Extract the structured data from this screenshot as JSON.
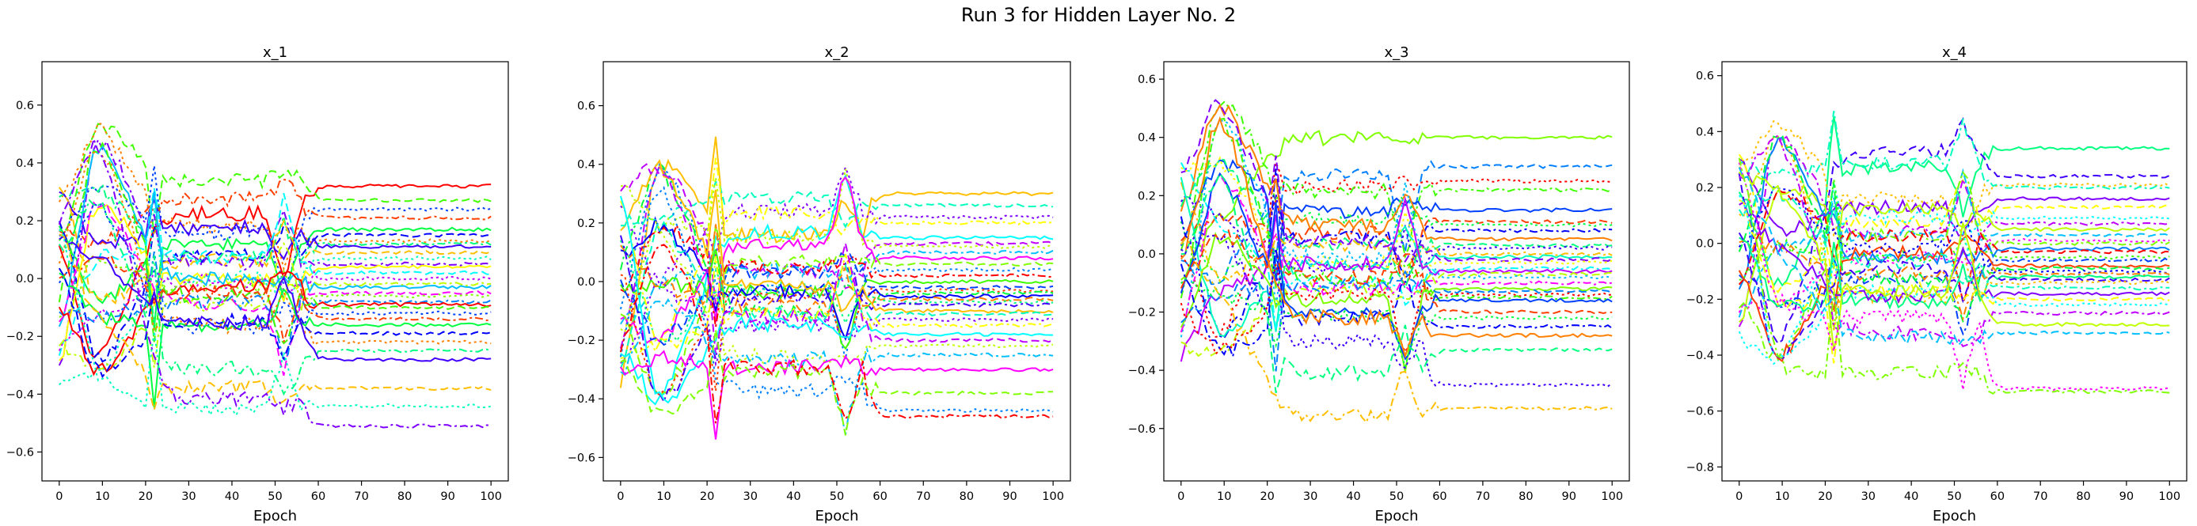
{
  "figure": {
    "suptitle": "Run 3 for Hidden Layer No. 2"
  },
  "chart_data": [
    {
      "type": "line",
      "title": "x_1",
      "xlabel": "Epoch",
      "ylabel": "",
      "xlim": [
        -4,
        104
      ],
      "ylim": [
        -0.7,
        0.75
      ],
      "xticks": [
        0,
        10,
        20,
        30,
        40,
        50,
        60,
        70,
        80,
        90,
        100
      ],
      "yticks": [
        -0.6,
        -0.4,
        -0.2,
        0.0,
        0.2,
        0.4,
        0.6
      ],
      "ytick_labels": [
        "−0.6",
        "−0.4",
        "−0.2",
        "0.0",
        "0.2",
        "0.4",
        "0.6"
      ],
      "grid": false,
      "series_count": 32,
      "series_finals": [
        0.32,
        0.27,
        0.24,
        0.21,
        0.17,
        0.15,
        0.13,
        0.12,
        0.11,
        0.09,
        0.07,
        0.05,
        0.04,
        0.02,
        0.0,
        -0.02,
        -0.03,
        -0.05,
        -0.06,
        -0.08,
        -0.09,
        -0.1,
        -0.12,
        -0.14,
        -0.16,
        -0.19,
        -0.22,
        -0.25,
        -0.28,
        -0.38,
        -0.44,
        -0.51
      ]
    },
    {
      "type": "line",
      "title": "x_2",
      "xlabel": "Epoch",
      "ylabel": "",
      "xlim": [
        -4,
        104
      ],
      "ylim": [
        -0.68,
        0.75
      ],
      "xticks": [
        0,
        10,
        20,
        30,
        40,
        50,
        60,
        70,
        80,
        90,
        100
      ],
      "yticks": [
        -0.6,
        -0.4,
        -0.2,
        0.0,
        0.2,
        0.4,
        0.6
      ],
      "ytick_labels": [
        "−0.6",
        "−0.4",
        "−0.2",
        "0.0",
        "0.2",
        "0.4",
        "0.6"
      ],
      "grid": false,
      "series_count": 32,
      "series_finals": [
        0.3,
        0.26,
        0.22,
        0.2,
        0.15,
        0.13,
        0.12,
        0.1,
        0.08,
        0.06,
        0.04,
        0.02,
        0.0,
        -0.02,
        -0.03,
        -0.04,
        -0.05,
        -0.06,
        -0.07,
        -0.08,
        -0.1,
        -0.11,
        -0.13,
        -0.15,
        -0.18,
        -0.2,
        -0.22,
        -0.25,
        -0.3,
        -0.38,
        -0.44,
        -0.46
      ]
    },
    {
      "type": "line",
      "title": "x_3",
      "xlabel": "Epoch",
      "ylabel": "",
      "xlim": [
        -4,
        104
      ],
      "ylim": [
        -0.78,
        0.66
      ],
      "xticks": [
        0,
        10,
        20,
        30,
        40,
        50,
        60,
        70,
        80,
        90,
        100
      ],
      "yticks": [
        -0.6,
        -0.4,
        -0.2,
        0.0,
        0.2,
        0.4,
        0.6
      ],
      "ytick_labels": [
        "−0.6",
        "−0.4",
        "−0.2",
        "0.0",
        "0.2",
        "0.4",
        "0.6"
      ],
      "grid": false,
      "series_count": 32,
      "series_finals": [
        0.4,
        0.3,
        0.25,
        0.22,
        0.15,
        0.11,
        0.1,
        0.08,
        0.05,
        0.03,
        0.02,
        0.0,
        -0.01,
        -0.02,
        -0.03,
        -0.05,
        -0.06,
        -0.07,
        -0.08,
        -0.1,
        -0.12,
        -0.13,
        -0.14,
        -0.15,
        -0.16,
        -0.2,
        -0.22,
        -0.25,
        -0.28,
        -0.33,
        -0.45,
        -0.53
      ]
    },
    {
      "type": "line",
      "title": "x_4",
      "xlabel": "Epoch",
      "ylabel": "",
      "xlim": [
        -4,
        104
      ],
      "ylim": [
        -0.85,
        0.65
      ],
      "xticks": [
        0,
        10,
        20,
        30,
        40,
        50,
        60,
        70,
        80,
        90,
        100
      ],
      "yticks": [
        -0.8,
        -0.6,
        -0.4,
        -0.2,
        0.0,
        0.2,
        0.4,
        0.6
      ],
      "ytick_labels": [
        "−0.8",
        "−0.6",
        "−0.4",
        "−0.2",
        "0.0",
        "0.2",
        "0.4",
        "0.6"
      ],
      "grid": false,
      "series_count": 32,
      "series_finals": [
        0.34,
        0.24,
        0.21,
        0.2,
        0.16,
        0.13,
        0.09,
        0.07,
        0.05,
        0.03,
        0.01,
        0.0,
        -0.02,
        -0.03,
        -0.05,
        -0.06,
        -0.08,
        -0.09,
        -0.1,
        -0.11,
        -0.12,
        -0.13,
        -0.14,
        -0.16,
        -0.18,
        -0.2,
        -0.22,
        -0.25,
        -0.29,
        -0.32,
        -0.52,
        -0.53
      ]
    }
  ]
}
